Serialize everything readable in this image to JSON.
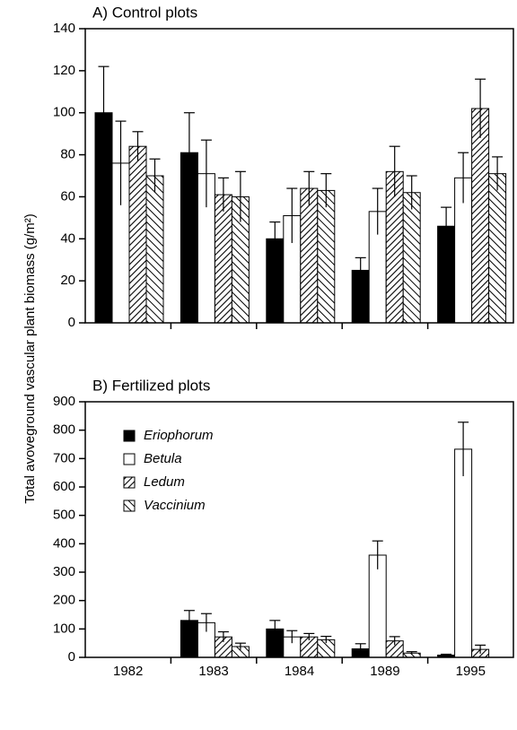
{
  "ylabel": "Total avoveground vascular plant biomass (g/m²)",
  "chart_data": [
    {
      "type": "bar",
      "title": "A) Control plots",
      "ylim": [
        0,
        140
      ],
      "yticks": [
        0,
        20,
        40,
        60,
        80,
        100,
        120,
        140
      ],
      "series": [
        {
          "name": "Eriophorum",
          "color": "#000000",
          "hatch": "none",
          "values": [
            100,
            81,
            40,
            25,
            46
          ],
          "errors": [
            22,
            19,
            8,
            6,
            9
          ]
        },
        {
          "name": "Betula",
          "color": "#ffffff",
          "hatch": "none",
          "values": [
            76,
            71,
            51,
            53,
            69
          ],
          "errors": [
            20,
            16,
            13,
            11,
            12
          ]
        },
        {
          "name": "Ledum",
          "color": "#ffffff",
          "hatch": "back",
          "values": [
            84,
            61,
            64,
            72,
            102
          ],
          "errors": [
            7,
            8,
            8,
            12,
            14
          ]
        },
        {
          "name": "Vaccinium",
          "color": "#ffffff",
          "hatch": "forward",
          "values": [
            70,
            60,
            63,
            62,
            71
          ],
          "errors": [
            8,
            12,
            8,
            8,
            8
          ]
        }
      ]
    },
    {
      "type": "bar",
      "title": "B) Fertilized plots",
      "categories": [
        "1982",
        "1983",
        "1984",
        "1989",
        "1995"
      ],
      "ylim": [
        0,
        900
      ],
      "yticks": [
        0,
        100,
        200,
        300,
        400,
        500,
        600,
        700,
        800,
        900
      ],
      "legend": "upper left",
      "series": [
        {
          "name": "Eriophorum",
          "color": "#000000",
          "hatch": "none",
          "values": [
            null,
            130,
            100,
            30,
            8
          ],
          "errors": [
            null,
            35,
            30,
            18,
            3
          ]
        },
        {
          "name": "Betula",
          "color": "#ffffff",
          "hatch": "none",
          "values": [
            null,
            122,
            72,
            360,
            733
          ],
          "errors": [
            null,
            32,
            22,
            50,
            95
          ]
        },
        {
          "name": "Ledum",
          "color": "#ffffff",
          "hatch": "back",
          "values": [
            null,
            72,
            72,
            58,
            28
          ],
          "errors": [
            null,
            18,
            12,
            15,
            15
          ]
        },
        {
          "name": "Vaccinium",
          "color": "#ffffff",
          "hatch": "forward",
          "values": [
            null,
            38,
            62,
            15,
            null
          ],
          "errors": [
            null,
            12,
            12,
            5,
            null
          ]
        }
      ]
    }
  ]
}
